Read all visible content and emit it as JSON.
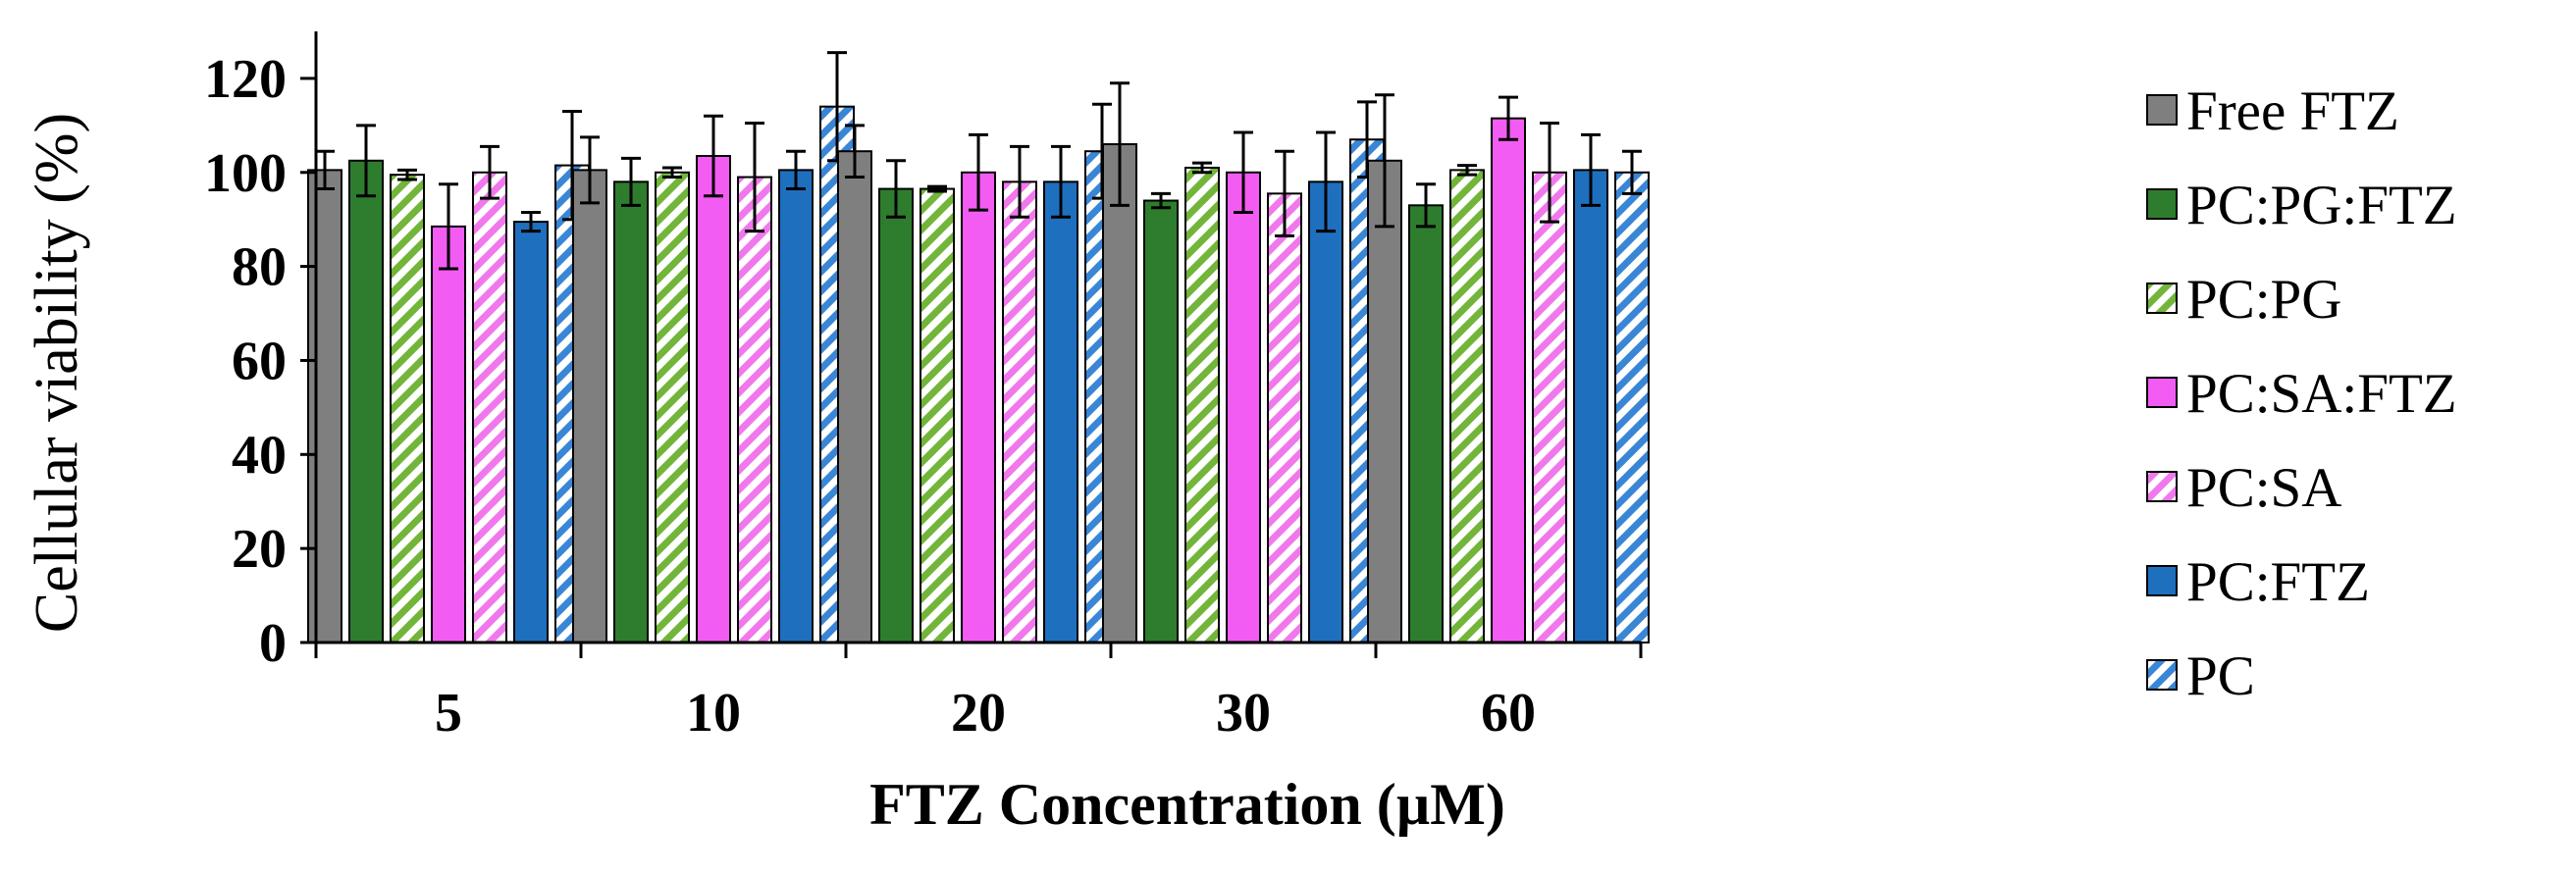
{
  "chart_data": {
    "type": "bar",
    "title": "",
    "xlabel": "FTZ Concentration (µM)",
    "ylabel": "Cellular viability (%)",
    "ylim": [
      0,
      130
    ],
    "yticks": [
      0,
      20,
      40,
      60,
      80,
      100,
      120
    ],
    "categories": [
      "5",
      "10",
      "20",
      "30",
      "60"
    ],
    "legend_position": "right",
    "grid": false,
    "series": [
      {
        "name": "Free FTZ",
        "color": "#7f7f7f",
        "pattern": "solid",
        "values": [
          100.5,
          100.5,
          104.5,
          106,
          102.5
        ],
        "errors": [
          4,
          7,
          5.5,
          13,
          14
        ]
      },
      {
        "name": "PC:PG:FTZ",
        "color": "#2e7d2e",
        "pattern": "solid",
        "values": [
          102.5,
          98,
          96.5,
          94,
          93
        ],
        "errors": [
          7.5,
          5,
          6,
          1.5,
          4.5
        ]
      },
      {
        "name": "PC:PG",
        "color": "#72b53a",
        "pattern": "hatched",
        "values": [
          99.5,
          100,
          96.5,
          101,
          100.5
        ],
        "errors": [
          1,
          1,
          0.5,
          1,
          1
        ]
      },
      {
        "name": "PC:SA:FTZ",
        "color": "#f25cf2",
        "pattern": "solid",
        "values": [
          88.5,
          103.5,
          100,
          100,
          111.5
        ],
        "errors": [
          9,
          8.5,
          8,
          8.5,
          4.5
        ]
      },
      {
        "name": "PC:SA",
        "color": "#f078ec",
        "pattern": "hatched",
        "values": [
          100,
          99,
          98,
          95.5,
          100
        ],
        "errors": [
          5.5,
          11.5,
          7.5,
          9,
          10.5
        ]
      },
      {
        "name": "PC:FTZ",
        "color": "#1f6fbf",
        "pattern": "solid",
        "values": [
          89.5,
          100.5,
          98,
          98,
          100.5
        ],
        "errors": [
          2,
          4,
          7.5,
          10.5,
          7.5
        ]
      },
      {
        "name": "PC",
        "color": "#3a86d6",
        "pattern": "hatched",
        "values": [
          101.5,
          114,
          104.5,
          107,
          100
        ],
        "errors": [
          11.5,
          11.5,
          10,
          8,
          4.5
        ]
      }
    ]
  }
}
